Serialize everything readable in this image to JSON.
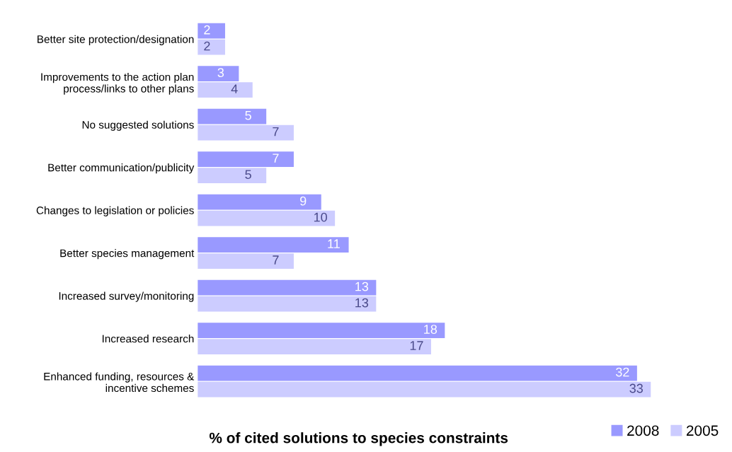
{
  "chart_data": {
    "type": "bar",
    "orientation": "horizontal",
    "xlabel": "% of cited solutions to species constraints",
    "categories": [
      "Better site protection/designation",
      "Improvements to the action plan\nprocess/links to other plans",
      "No suggested solutions",
      "Better communication/publicity",
      "Changes to legislation or policies",
      "Better species management",
      "Increased survey/monitoring",
      "Increased research",
      "Enhanced funding, resources &\nincentive schemes"
    ],
    "series": [
      {
        "name": "2008",
        "color": "#9999ff",
        "values": [
          2,
          3,
          5,
          7,
          9,
          11,
          13,
          18,
          32
        ]
      },
      {
        "name": "2005",
        "color": "#ccccff",
        "values": [
          2,
          4,
          7,
          5,
          10,
          7,
          13,
          17,
          33
        ]
      }
    ],
    "data_labels": true,
    "legend": "bottom right",
    "grid": false
  }
}
